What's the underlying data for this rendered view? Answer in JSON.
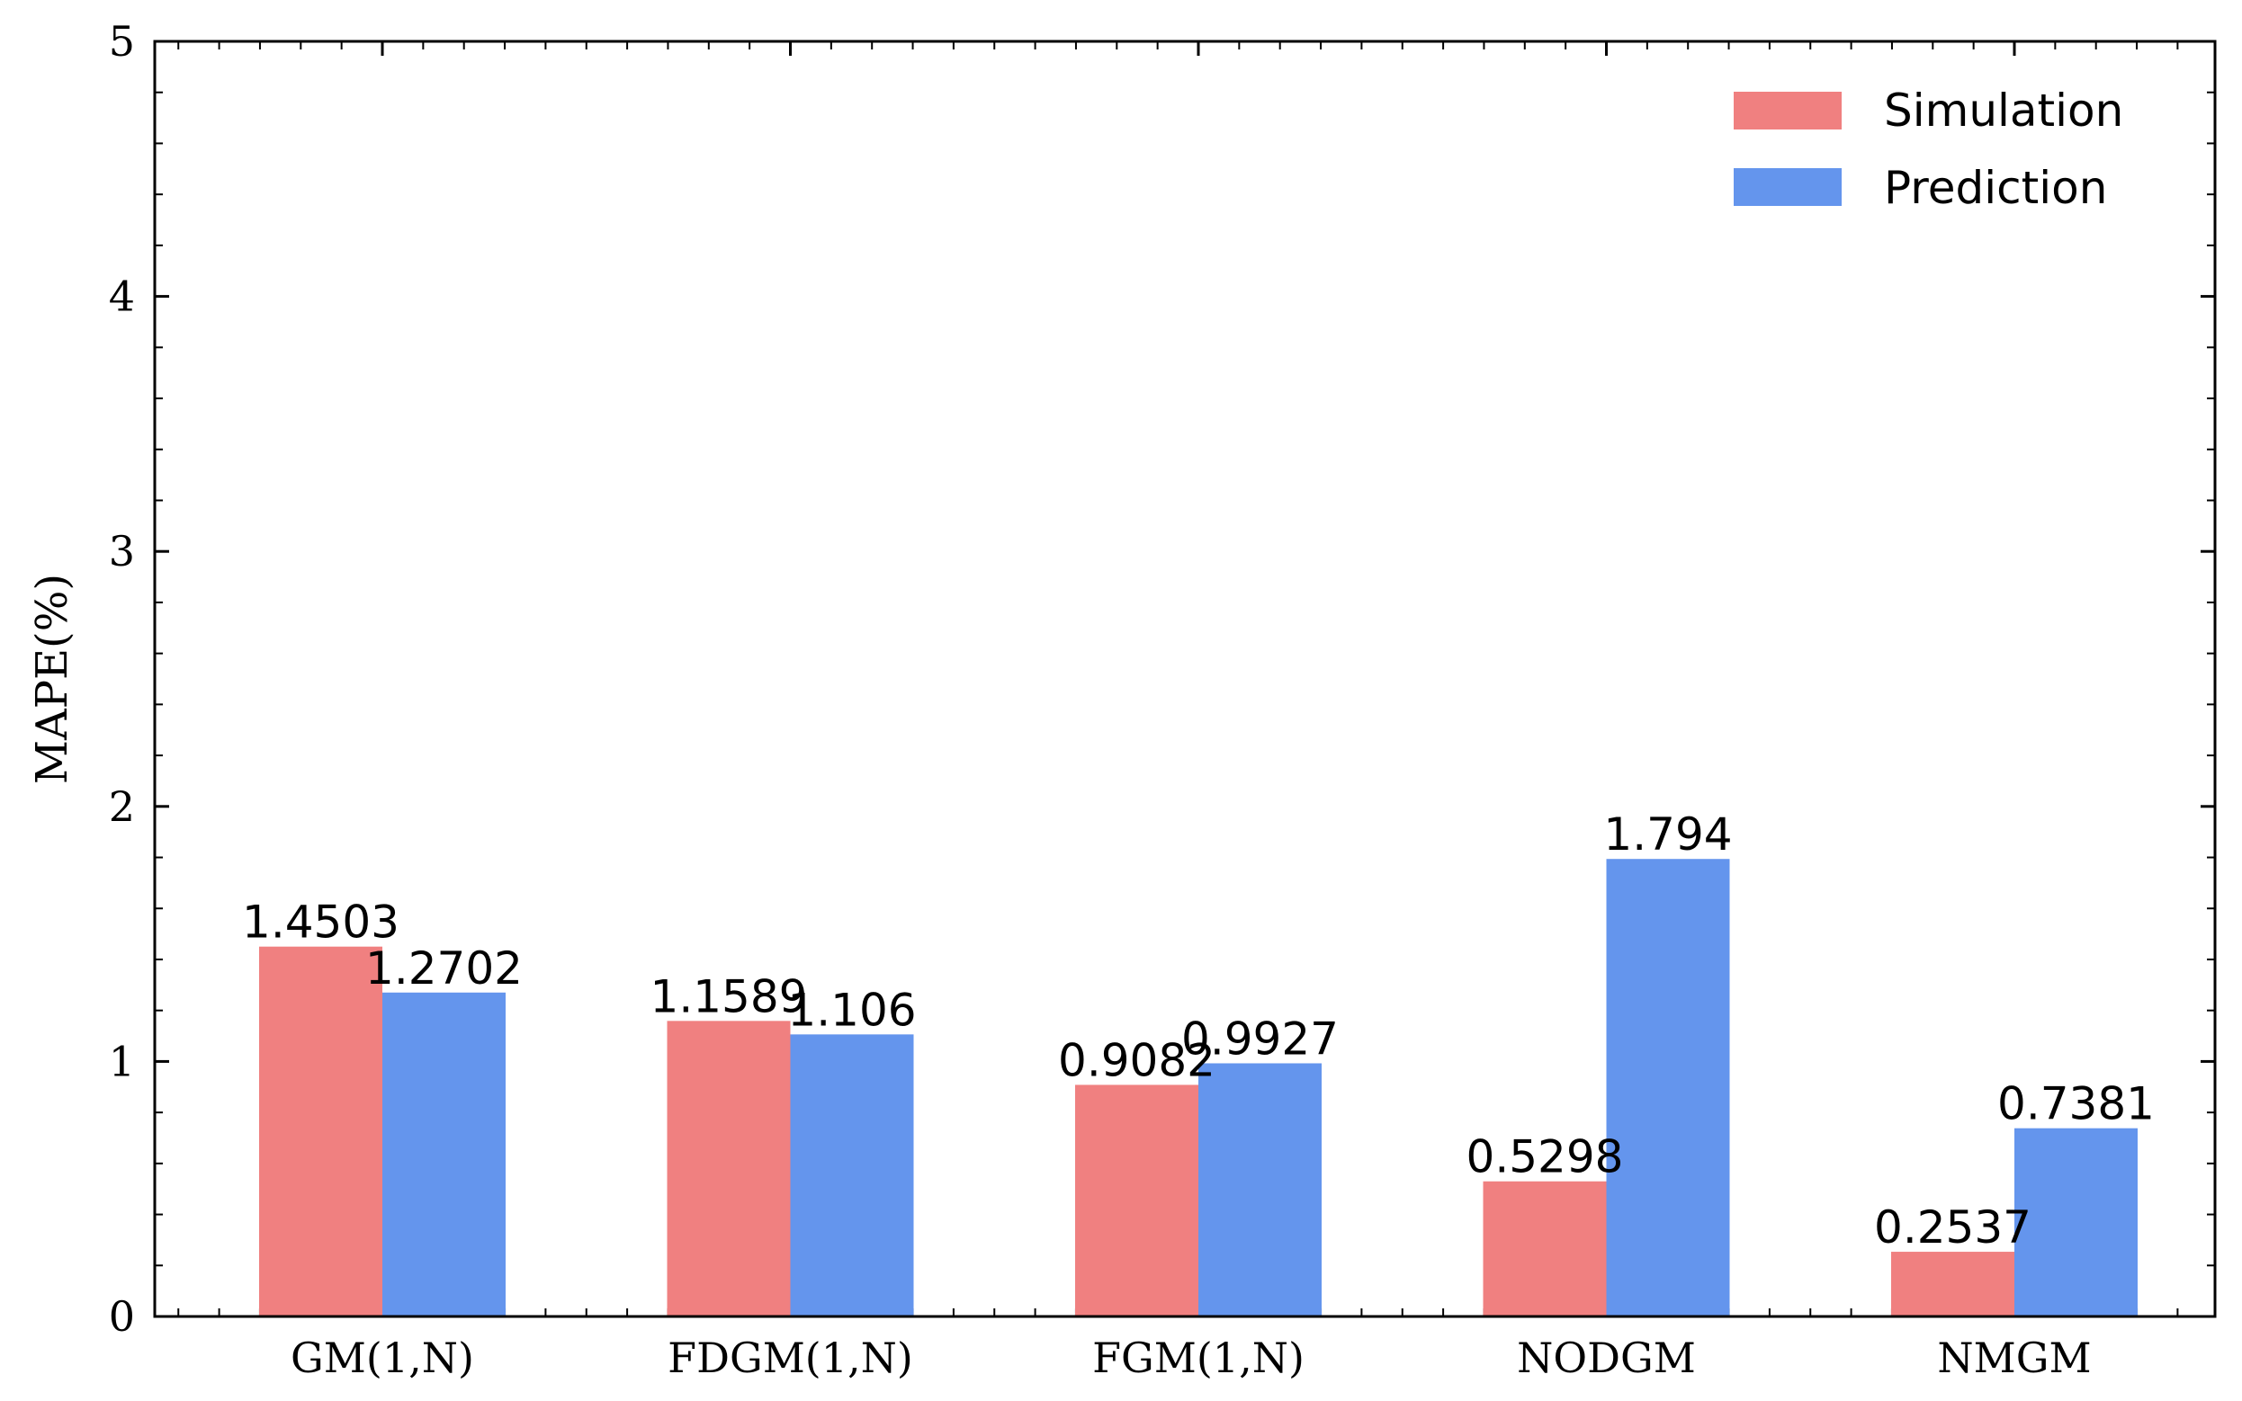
{
  "chart_data": {
    "type": "bar",
    "categories": [
      "GM(1,N)",
      "FDGM(1,N)",
      "FGM(1,N)",
      "NODGM",
      "NMGM"
    ],
    "series": [
      {
        "name": "Simulation",
        "color": "#F08080",
        "values": [
          1.4503,
          1.1589,
          0.9082,
          0.5298,
          0.2537
        ],
        "labels": [
          "1.4503",
          "1.1589",
          "0.9082",
          "0.5298",
          "0.2537"
        ]
      },
      {
        "name": "Prediction",
        "color": "#6495ED",
        "values": [
          1.2702,
          1.106,
          0.9927,
          1.794,
          0.7381
        ],
        "labels": [
          "1.2702",
          "1.106",
          "0.9927",
          "1.794",
          "0.7381"
        ]
      }
    ],
    "xlabel": "",
    "ylabel": "MAPE(%)",
    "ylim": [
      0,
      5
    ],
    "yticks": [
      0,
      1,
      2,
      3,
      4,
      5
    ],
    "grid": false,
    "legend_position": "top-right"
  }
}
